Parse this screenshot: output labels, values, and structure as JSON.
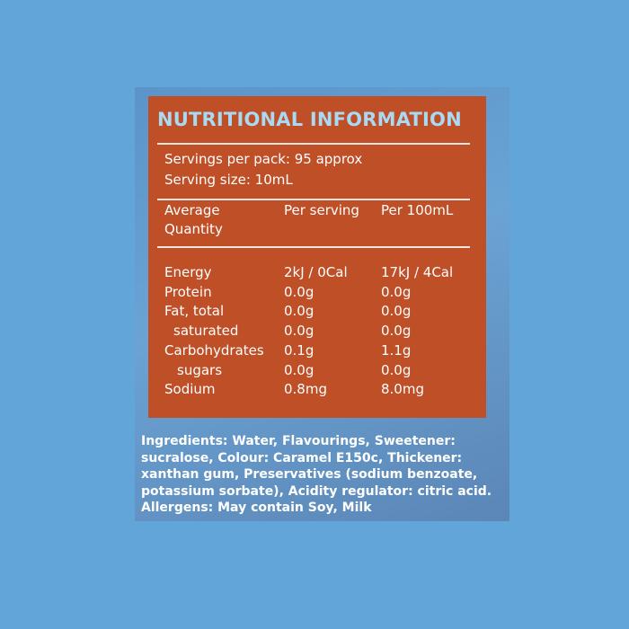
{
  "header": {
    "title": "NUTRITIONAL INFORMATION"
  },
  "servings": [
    "Servings per pack: 95 approx",
    "Serving size: 10mL"
  ],
  "table": {
    "columns": [
      [
        "Average",
        "Quantity"
      ],
      [
        "Per serving"
      ],
      [
        "Per 100mL"
      ]
    ],
    "rows": [
      [
        "Energy",
        "2kJ / 0Cal",
        "17kJ / 4Cal"
      ],
      [
        "Protein",
        "0.0g",
        "0.0g"
      ],
      [
        "Fat, total",
        "0.0g",
        "0.0g"
      ],
      [
        "saturated",
        "0.0g",
        "0.0g"
      ],
      [
        "Carbohydrates",
        "0.1g",
        "1.1g"
      ],
      [
        "sugars",
        "0.0g",
        "0.0g"
      ],
      [
        "Sodium",
        "0.8mg",
        "8.0mg"
      ]
    ]
  },
  "ingredients": [
    "Ingredients: Water, Flavourings, Sweetener:",
    "sucralose, Colour: Caramel E150c, Thickener:",
    "xanthan gum, Preservatives (sodium benzoate,",
    "potassium sorbate), Acidity regulator: citric acid.",
    "Allergens: May contain Soy, Milk"
  ]
}
